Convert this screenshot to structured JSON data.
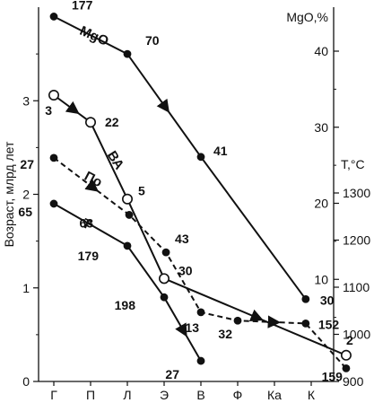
{
  "chart_data": {
    "type": "line",
    "categories": [
      "Г",
      "П",
      "Л",
      "Э",
      "В",
      "Ф",
      "Ка",
      "К"
    ],
    "y_left": {
      "label": "Возраст, млрд лет",
      "range": [
        0,
        4
      ],
      "ticks": [
        "0",
        "1",
        "2",
        "3"
      ]
    },
    "y_right_mgo": {
      "label": "MgO,%",
      "range": [
        0,
        40
      ],
      "ticks": [
        "10",
        "20",
        "30",
        "40"
      ]
    },
    "y_right_temp": {
      "label": "T,°C",
      "range": [
        900,
        1300
      ],
      "ticks": [
        "900",
        "1000",
        "1100",
        "1200",
        "1300"
      ]
    },
    "series": [
      {
        "name": "MgO",
        "style": "solid",
        "points": [
          {
            "x": 0.0,
            "age": 3.9,
            "label": "177",
            "marker": "filled"
          },
          {
            "x": 2.0,
            "age": 3.5,
            "label": "70",
            "marker": "filled"
          },
          {
            "x": 4.0,
            "age": 2.4,
            "label": "41",
            "marker": "filled"
          },
          {
            "x": 6.85,
            "age": 0.88,
            "label": "30",
            "marker": "filled"
          }
        ],
        "arrows": [
          [
            2.0,
            4.0
          ]
        ]
      },
      {
        "name": "ВА",
        "style": "solid",
        "points": [
          {
            "x": 0.0,
            "age": 3.06,
            "label": "3",
            "marker": "open"
          },
          {
            "x": 1.0,
            "age": 2.77,
            "label": "22",
            "marker": "open"
          },
          {
            "x": 2.0,
            "age": 1.95,
            "label": "5",
            "marker": "open"
          },
          {
            "x": 3.0,
            "age": 1.1,
            "label": "30",
            "marker": "open"
          },
          {
            "x": 7.95,
            "age": 0.28,
            "label": "2",
            "marker": "open"
          }
        ],
        "arrows": [
          [
            0.0,
            1.0
          ],
          [
            3.0,
            7.95
          ]
        ]
      },
      {
        "name": "По",
        "style": "dashed",
        "points": [
          {
            "x": 0.0,
            "age": 2.39,
            "label": "27",
            "marker": "filled"
          },
          {
            "x": 2.05,
            "age": 1.78,
            "label": "63",
            "marker": "filled"
          },
          {
            "x": 3.05,
            "age": 1.38,
            "label": "43",
            "marker": "filled"
          },
          {
            "x": 4.0,
            "age": 0.74,
            "label": "13",
            "marker": "filled"
          },
          {
            "x": 5.0,
            "age": 0.65,
            "label": "32",
            "marker": "filled"
          },
          {
            "x": 6.85,
            "age": 0.62,
            "label": "152",
            "marker": "filled"
          },
          {
            "x": 7.95,
            "age": 0.14,
            "label": "159",
            "marker": "filled"
          }
        ],
        "arrows": [
          [
            0.0,
            2.05
          ],
          [
            5.0,
            7.95
          ]
        ]
      },
      {
        "name": "Т",
        "style": "solid",
        "points": [
          {
            "x": 0.0,
            "age": 1.9,
            "label": "65",
            "marker": "filled"
          },
          {
            "x": 2.0,
            "age": 1.45,
            "label": "179",
            "marker": "filled"
          },
          {
            "x": 3.0,
            "age": 0.9,
            "label": "198",
            "marker": "filled"
          },
          {
            "x": 4.0,
            "age": 0.22,
            "label": "27",
            "marker": "filled"
          }
        ],
        "arrows": [
          [
            3.0,
            4.0
          ]
        ]
      }
    ]
  }
}
